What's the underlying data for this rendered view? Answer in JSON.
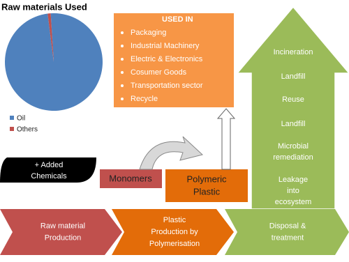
{
  "chart_data": {
    "type": "pie",
    "title": "Raw materials Used",
    "categories": [
      "Oil",
      "Others"
    ],
    "values": [
      99,
      1
    ],
    "colors": [
      "#4f81bd",
      "#c0504d"
    ]
  },
  "used_in": {
    "title": "USED IN",
    "items": [
      "Packaging",
      "Industrial Machinery",
      "Electric & Electronics",
      "Cosumer Goods",
      "Transportation  sector",
      "Recycle"
    ]
  },
  "disposal": {
    "items": [
      [
        "Incineration"
      ],
      [
        "Landfill"
      ],
      [
        "Reuse"
      ],
      [
        "Landfill"
      ],
      [
        "Microbial",
        "remediation"
      ],
      [
        "Leakage",
        "into",
        "ecosystem"
      ]
    ]
  },
  "added": [
    "+ Added",
    "Chemicals"
  ],
  "monomers": "Monomers",
  "polymeric": [
    "Polymeric",
    "Plastic"
  ],
  "stages": [
    [
      "Raw material",
      "Production"
    ],
    [
      "Plastic",
      "Production by",
      "Polymerisation"
    ],
    [
      "Disposal &",
      "treatment"
    ]
  ]
}
